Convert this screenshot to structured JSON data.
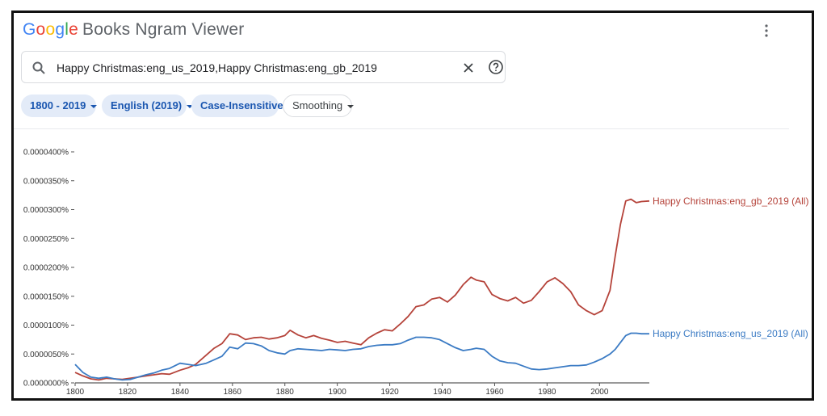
{
  "header": {
    "logo_letters": [
      "G",
      "o",
      "o",
      "g",
      "l",
      "e"
    ],
    "app_name": "Books Ngram Viewer",
    "menu_icon": "more-vert-icon"
  },
  "search": {
    "value": "Happy Christmas:eng_us_2019,Happy Christmas:eng_gb_2019",
    "search_icon": "search-icon",
    "clear_icon": "close-icon",
    "help_icon": "help-icon"
  },
  "filters": {
    "year_range": "1800 - 2019",
    "corpus": "English (2019)",
    "case": "Case-Insensitive",
    "smoothing": "Smoothing"
  },
  "colors": {
    "gb": "#b5433a",
    "us": "#3b7bc4",
    "chip_bg": "#e3ebf8",
    "chip_text": "#1a56b0"
  },
  "chart_data": {
    "type": "line",
    "x_range": [
      1800,
      2019
    ],
    "ylim": [
      0,
      4e-07
    ],
    "x_ticks": [
      "1800",
      "1820",
      "1840",
      "1860",
      "1880",
      "1900",
      "1920",
      "1940",
      "1960",
      "1980",
      "2000"
    ],
    "y_ticks": [
      "0.0000000%",
      "0.0000050%",
      "0.0000100%",
      "0.0000150%",
      "0.0000200%",
      "0.0000250%",
      "0.0000300%",
      "0.0000350%",
      "0.0000400%"
    ],
    "grid": false,
    "legend": "line-end labels on right",
    "series": [
      {
        "name": "Happy Christmas:eng_gb_2019 (All)",
        "color": "#b5433a",
        "x": [
          1800,
          1803,
          1806,
          1809,
          1812,
          1815,
          1818,
          1821,
          1824,
          1827,
          1830,
          1833,
          1836,
          1840,
          1843,
          1846,
          1850,
          1853,
          1856,
          1859,
          1862,
          1865,
          1868,
          1871,
          1874,
          1877,
          1880,
          1882,
          1885,
          1888,
          1891,
          1894,
          1897,
          1900,
          1903,
          1906,
          1909,
          1912,
          1915,
          1918,
          1921,
          1924,
          1927,
          1930,
          1933,
          1936,
          1939,
          1942,
          1945,
          1948,
          1951,
          1953,
          1956,
          1959,
          1962,
          1965,
          1968,
          1971,
          1974,
          1977,
          1980,
          1983,
          1986,
          1989,
          1992,
          1995,
          1998,
          2001,
          2004,
          2006,
          2008,
          2010,
          2012,
          2014,
          2016,
          2019
        ],
        "y": [
          1.8e-08,
          1.2e-08,
          7e-09,
          5e-09,
          8e-09,
          7e-09,
          6e-09,
          8e-09,
          1e-08,
          1.2e-08,
          1.4e-08,
          1.6e-08,
          1.5e-08,
          2.2e-08,
          2.6e-08,
          3.2e-08,
          4.8e-08,
          6e-08,
          6.8e-08,
          8.5e-08,
          8.3e-08,
          7.5e-08,
          7.8e-08,
          7.9e-08,
          7.6e-08,
          7.8e-08,
          8.2e-08,
          9.1e-08,
          8.3e-08,
          7.8e-08,
          8.2e-08,
          7.7e-08,
          7.4e-08,
          7e-08,
          7.2e-08,
          6.9e-08,
          6.6e-08,
          7.8e-08,
          8.6e-08,
          9.2e-08,
          9e-08,
          1.02e-07,
          1.15e-07,
          1.32e-07,
          1.35e-07,
          1.45e-07,
          1.48e-07,
          1.4e-07,
          1.52e-07,
          1.7e-07,
          1.83e-07,
          1.78e-07,
          1.75e-07,
          1.53e-07,
          1.46e-07,
          1.42e-07,
          1.48e-07,
          1.38e-07,
          1.43e-07,
          1.58e-07,
          1.75e-07,
          1.82e-07,
          1.72e-07,
          1.58e-07,
          1.35e-07,
          1.25e-07,
          1.18e-07,
          1.25e-07,
          1.6e-07,
          2.2e-07,
          2.75e-07,
          3.15e-07,
          3.18e-07,
          3.12e-07,
          3.14e-07,
          3.15e-07
        ]
      },
      {
        "name": "Happy Christmas:eng_us_2019 (All)",
        "color": "#3b7bc4",
        "x": [
          1800,
          1803,
          1806,
          1809,
          1812,
          1815,
          1818,
          1821,
          1824,
          1827,
          1830,
          1833,
          1836,
          1840,
          1843,
          1846,
          1850,
          1853,
          1856,
          1859,
          1862,
          1865,
          1868,
          1871,
          1874,
          1877,
          1880,
          1882,
          1885,
          1888,
          1891,
          1894,
          1897,
          1900,
          1903,
          1906,
          1909,
          1912,
          1915,
          1918,
          1921,
          1924,
          1927,
          1930,
          1933,
          1936,
          1939,
          1942,
          1945,
          1948,
          1951,
          1953,
          1956,
          1959,
          1962,
          1965,
          1968,
          1971,
          1974,
          1977,
          1980,
          1983,
          1986,
          1989,
          1992,
          1995,
          1998,
          2001,
          2004,
          2006,
          2008,
          2010,
          2012,
          2014,
          2016,
          2019
        ],
        "y": [
          3.2e-08,
          1.8e-08,
          1e-08,
          8e-09,
          1e-08,
          7e-09,
          5e-09,
          6e-09,
          1e-08,
          1.4e-08,
          1.7e-08,
          2.2e-08,
          2.5e-08,
          3.4e-08,
          3.2e-08,
          3e-08,
          3.4e-08,
          4e-08,
          4.6e-08,
          6.2e-08,
          5.9e-08,
          6.9e-08,
          6.8e-08,
          6.4e-08,
          5.6e-08,
          5.2e-08,
          5e-08,
          5.6e-08,
          5.9e-08,
          5.8e-08,
          5.7e-08,
          5.6e-08,
          5.8e-08,
          5.7e-08,
          5.6e-08,
          5.8e-08,
          5.9e-08,
          6.3e-08,
          6.5e-08,
          6.6e-08,
          6.6e-08,
          6.8e-08,
          7.4e-08,
          7.9e-08,
          7.9e-08,
          7.8e-08,
          7.5e-08,
          6.8e-08,
          6.1e-08,
          5.6e-08,
          5.8e-08,
          6e-08,
          5.8e-08,
          4.6e-08,
          3.8e-08,
          3.5e-08,
          3.4e-08,
          2.9e-08,
          2.4e-08,
          2.3e-08,
          2.4e-08,
          2.6e-08,
          2.8e-08,
          3e-08,
          3e-08,
          3.1e-08,
          3.6e-08,
          4.2e-08,
          5e-08,
          5.8e-08,
          7e-08,
          8.2e-08,
          8.6e-08,
          8.6e-08,
          8.5e-08,
          8.5e-08
        ]
      }
    ]
  }
}
